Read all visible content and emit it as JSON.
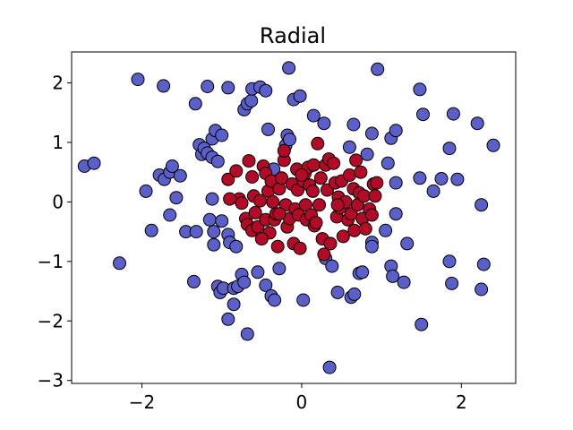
{
  "chart_data": {
    "type": "scatter",
    "title": "Radial",
    "xlabel": "",
    "ylabel": "",
    "xlim": [
      -2.88,
      2.68
    ],
    "ylim": [
      -3.05,
      2.52
    ],
    "xticks": [
      -2,
      0,
      2
    ],
    "yticks": [
      -3,
      -2,
      -1,
      0,
      1,
      2
    ],
    "xtick_labels": [
      "−2",
      "0",
      "2"
    ],
    "ytick_labels": [
      "−3",
      "−2",
      "−1",
      "0",
      "1",
      "2"
    ],
    "grid": false,
    "series": [
      {
        "color": "#5a5fc9",
        "points": [
          [
            -2.72,
            0.6
          ],
          [
            -2.6,
            0.65
          ],
          [
            -2.05,
            2.06
          ],
          [
            -1.73,
            1.95
          ],
          [
            -2.28,
            -1.03
          ],
          [
            -1.95,
            0.18
          ],
          [
            -1.88,
            -0.48
          ],
          [
            -1.78,
            0.45
          ],
          [
            -1.72,
            0.38
          ],
          [
            -1.65,
            0.5
          ],
          [
            -1.62,
            0.6
          ],
          [
            -1.57,
            0.07
          ],
          [
            -1.52,
            0.44
          ],
          [
            -1.65,
            -0.22
          ],
          [
            -1.45,
            -0.5
          ],
          [
            -1.32,
            -0.5
          ],
          [
            -1.33,
            1.65
          ],
          [
            -1.28,
            0.96
          ],
          [
            -1.25,
            0.8
          ],
          [
            -1.22,
            0.9
          ],
          [
            -1.18,
            0.82
          ],
          [
            -1.12,
            0.75
          ],
          [
            -1.12,
            1.06
          ],
          [
            -1.08,
            1.2
          ],
          [
            -1.05,
            0.68
          ],
          [
            -1.18,
            1.94
          ],
          [
            -1.15,
            -0.3
          ],
          [
            -1.1,
            -0.5
          ],
          [
            -1.1,
            -0.72
          ],
          [
            -1.0,
            -0.32
          ],
          [
            -1.0,
            1.12
          ],
          [
            -0.92,
            1.92
          ],
          [
            -0.92,
            -0.55
          ],
          [
            -0.9,
            -0.68
          ],
          [
            -0.82,
            -0.75
          ],
          [
            -1.12,
            0.05
          ],
          [
            -1.35,
            -1.34
          ],
          [
            -1.05,
            -1.42
          ],
          [
            -1.02,
            -1.52
          ],
          [
            -0.98,
            -1.45
          ],
          [
            -0.92,
            -1.97
          ],
          [
            -0.85,
            -1.72
          ],
          [
            -0.85,
            -1.45
          ],
          [
            -0.8,
            -1.42
          ],
          [
            -0.75,
            -1.22
          ],
          [
            -0.72,
            -1.35
          ],
          [
            -0.68,
            -2.22
          ],
          [
            -0.72,
            1.55
          ],
          [
            -0.68,
            1.65
          ],
          [
            -0.63,
            1.7
          ],
          [
            -0.62,
            1.9
          ],
          [
            -0.52,
            1.93
          ],
          [
            -0.45,
            1.87
          ],
          [
            -0.42,
            1.22
          ],
          [
            -0.55,
            -1.18
          ],
          [
            -0.45,
            -1.4
          ],
          [
            -0.38,
            -1.58
          ],
          [
            -0.34,
            -1.65
          ],
          [
            -0.28,
            -1.12
          ],
          [
            -0.2,
            0.95
          ],
          [
            -0.18,
            1.12
          ],
          [
            -0.15,
            1.05
          ],
          [
            -0.1,
            1.72
          ],
          [
            -0.02,
            1.78
          ],
          [
            0.02,
            -1.65
          ],
          [
            -0.16,
            2.25
          ],
          [
            0.15,
            1.45
          ],
          [
            0.28,
            1.32
          ],
          [
            0.3,
            -0.95
          ],
          [
            0.38,
            -1.08
          ],
          [
            0.35,
            -2.78
          ],
          [
            0.45,
            -1.52
          ],
          [
            0.6,
            0.92
          ],
          [
            0.62,
            -1.6
          ],
          [
            0.65,
            1.3
          ],
          [
            0.72,
            -1.2
          ],
          [
            0.76,
            -1.18
          ],
          [
            0.82,
            0.8
          ],
          [
            0.88,
            1.15
          ],
          [
            0.88,
            -0.68
          ],
          [
            0.88,
            -0.75
          ],
          [
            0.95,
            2.23
          ],
          [
            1.05,
            -0.48
          ],
          [
            1.08,
            0.65
          ],
          [
            1.12,
            1.07
          ],
          [
            1.12,
            -1.08
          ],
          [
            1.14,
            -1.25
          ],
          [
            1.18,
            1.2
          ],
          [
            1.18,
            0.32
          ],
          [
            1.28,
            -1.35
          ],
          [
            1.18,
            -0.2
          ],
          [
            1.48,
            1.89
          ],
          [
            1.52,
            1.47
          ],
          [
            1.5,
            -2.06
          ],
          [
            1.32,
            -0.7
          ],
          [
            1.48,
            0.4
          ],
          [
            1.65,
            0.18
          ],
          [
            1.75,
            0.39
          ],
          [
            1.85,
            0.9
          ],
          [
            1.9,
            1.48
          ],
          [
            1.95,
            0.38
          ],
          [
            1.85,
            -1.0
          ],
          [
            1.88,
            -1.37
          ],
          [
            2.2,
            1.32
          ],
          [
            2.25,
            -0.05
          ],
          [
            2.25,
            -1.47
          ],
          [
            2.28,
            -1.05
          ],
          [
            2.4,
            0.95
          ],
          [
            0.66,
            -1.55
          ],
          [
            -0.35,
            0.55
          ]
        ]
      },
      {
        "color": "#b30a27",
        "points": [
          [
            -0.92,
            0.38
          ],
          [
            -0.82,
            0.52
          ],
          [
            -0.78,
            0.05
          ],
          [
            -0.75,
            -0.02
          ],
          [
            -0.7,
            -0.28
          ],
          [
            -0.68,
            -0.38
          ],
          [
            -0.66,
            0.69
          ],
          [
            -0.62,
            0.42
          ],
          [
            -0.62,
            -0.48
          ],
          [
            -0.6,
            0.1
          ],
          [
            -0.58,
            -0.18
          ],
          [
            -0.55,
            -0.42
          ],
          [
            -0.52,
            0.02
          ],
          [
            -0.48,
            0.6
          ],
          [
            -0.45,
            0.48
          ],
          [
            -0.45,
            -0.3
          ],
          [
            -0.42,
            0.18
          ],
          [
            -0.4,
            -0.52
          ],
          [
            -0.38,
            0.35
          ],
          [
            -0.36,
            0.0
          ],
          [
            -0.34,
            -0.3
          ],
          [
            -0.32,
            -0.2
          ],
          [
            -0.3,
            -0.75
          ],
          [
            -0.28,
            0.22
          ],
          [
            -0.25,
            0.4
          ],
          [
            -0.22,
            0.7
          ],
          [
            -0.22,
            0.86
          ],
          [
            -0.2,
            -0.05
          ],
          [
            -0.18,
            -0.42
          ],
          [
            -0.15,
            -0.28
          ],
          [
            -0.12,
            0.3
          ],
          [
            -0.1,
            -0.7
          ],
          [
            -0.08,
            -0.12
          ],
          [
            -0.06,
            0.55
          ],
          [
            -0.05,
            0.2
          ],
          [
            -0.04,
            -0.22
          ],
          [
            -0.02,
            -0.78
          ],
          [
            0.02,
            0.35
          ],
          [
            0.04,
            0.48
          ],
          [
            0.05,
            -0.05
          ],
          [
            0.06,
            -0.3
          ],
          [
            0.08,
            0.58
          ],
          [
            0.1,
            0.28
          ],
          [
            0.12,
            -0.22
          ],
          [
            0.14,
            0.18
          ],
          [
            0.15,
            0.62
          ],
          [
            0.16,
            -0.4
          ],
          [
            0.18,
            -0.35
          ],
          [
            0.2,
            0.98
          ],
          [
            0.22,
            -0.05
          ],
          [
            0.24,
            0.4
          ],
          [
            0.26,
            -0.62
          ],
          [
            0.28,
            -0.88
          ],
          [
            0.3,
            0.62
          ],
          [
            0.32,
            0.2
          ],
          [
            0.34,
            0.72
          ],
          [
            0.36,
            -0.7
          ],
          [
            0.4,
            0.65
          ],
          [
            0.42,
            0.32
          ],
          [
            0.44,
            -0.25
          ],
          [
            0.46,
            0.08
          ],
          [
            0.48,
            -0.1
          ],
          [
            0.5,
            0.35
          ],
          [
            0.52,
            -0.58
          ],
          [
            0.55,
            0.0
          ],
          [
            0.58,
            -0.3
          ],
          [
            0.6,
            0.45
          ],
          [
            0.62,
            -0.2
          ],
          [
            0.65,
            0.22
          ],
          [
            0.66,
            -0.48
          ],
          [
            0.68,
            0.7
          ],
          [
            0.7,
            -0.05
          ],
          [
            0.72,
            0.15
          ],
          [
            0.74,
            0.5
          ],
          [
            0.76,
            -0.28
          ],
          [
            0.78,
            0.1
          ],
          [
            0.8,
            -0.45
          ],
          [
            0.85,
            -0.12
          ],
          [
            0.88,
            -0.22
          ],
          [
            0.9,
            0.3
          ],
          [
            0.92,
            0.1
          ],
          [
            0.94,
            0.32
          ],
          [
            -0.9,
            0.05
          ],
          [
            -0.5,
            -0.62
          ],
          [
            0.0,
            0.45
          ],
          [
            -0.28,
            -0.2
          ],
          [
            0.45,
            -0.05
          ]
        ]
      }
    ]
  }
}
